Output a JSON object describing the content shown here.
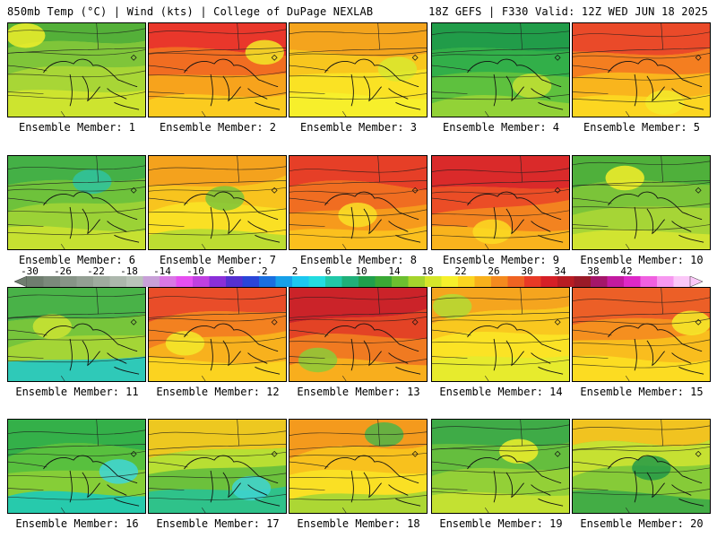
{
  "header": {
    "title_left": "850mb Temp (°C) | Wind (kts) | College of DuPage NEXLAB",
    "title_right": "18Z GEFS | F330 Valid: 12Z WED JUN 18 2025"
  },
  "panels": [
    {
      "label": "Ensemble Member: 1",
      "palette": [
        "#4fae3a",
        "#7cc43a",
        "#a8d636",
        "#cfe52f",
        "#f0ef2a"
      ]
    },
    {
      "label": "Ensemble Member: 2",
      "palette": [
        "#e8322c",
        "#f06a22",
        "#f7a31c",
        "#fbcd20",
        "#f2e727"
      ]
    },
    {
      "label": "Ensemble Member: 3",
      "palette": [
        "#f3a01d",
        "#f8c41f",
        "#fae224",
        "#f7ef2c",
        "#d9e72f"
      ]
    },
    {
      "label": "Ensemble Member: 4",
      "palette": [
        "#1e9a4a",
        "#2fae4a",
        "#5ec13e",
        "#95d337",
        "#c4e133"
      ]
    },
    {
      "label": "Ensemble Member: 5",
      "palette": [
        "#e9452a",
        "#f37b21",
        "#f9b51d",
        "#fcd822",
        "#f3ea2a"
      ]
    },
    {
      "label": "Ensemble Member: 6",
      "palette": [
        "#3fae48",
        "#6cc13c",
        "#9bd236",
        "#c8e231",
        "#2fc3a0"
      ]
    },
    {
      "label": "Ensemble Member: 7",
      "palette": [
        "#f39e1d",
        "#f8c21f",
        "#fae024",
        "#b9dc33",
        "#7cc43a"
      ]
    },
    {
      "label": "Ensemble Member: 8",
      "palette": [
        "#e53a28",
        "#ef6a22",
        "#f69a1c",
        "#fbc21f",
        "#f9e126"
      ]
    },
    {
      "label": "Ensemble Member: 9",
      "palette": [
        "#d8252b",
        "#ea4a27",
        "#f38320",
        "#f9b51d",
        "#fcdb22"
      ]
    },
    {
      "label": "Ensemble Member: 10",
      "palette": [
        "#4aae3c",
        "#78c33a",
        "#a6d536",
        "#d3e531",
        "#f4ee2a"
      ]
    },
    {
      "label": "Ensemble Member: 11",
      "palette": [
        "#45b04a",
        "#75c43c",
        "#a4d536",
        "#29c8c0",
        "#cbe332"
      ]
    },
    {
      "label": "Ensemble Member: 12",
      "palette": [
        "#e8482a",
        "#f27e21",
        "#f8b11d",
        "#fbd521",
        "#f3ea2a"
      ]
    },
    {
      "label": "Ensemble Member: 13",
      "palette": [
        "#c81f2a",
        "#e24026",
        "#f07a21",
        "#f8b11d",
        "#8ccb38"
      ]
    },
    {
      "label": "Ensemble Member: 14",
      "palette": [
        "#f4a11d",
        "#f9c61f",
        "#fbe325",
        "#e6eb2d",
        "#b3da34"
      ]
    },
    {
      "label": "Ensemble Member: 15",
      "palette": [
        "#eb5a28",
        "#f48c20",
        "#f9bd1e",
        "#fcdd23",
        "#f4ec2a"
      ]
    },
    {
      "label": "Ensemble Member: 16",
      "palette": [
        "#2fae4a",
        "#55bf3e",
        "#86ce37",
        "#22c9b2",
        "#3fd6d8"
      ]
    },
    {
      "label": "Ensemble Member: 17",
      "palette": [
        "#f4c81f",
        "#bde033",
        "#6cc13c",
        "#2cc28e",
        "#3ed4d2"
      ]
    },
    {
      "label": "Ensemble Member: 18",
      "palette": [
        "#f3961d",
        "#f8bf1e",
        "#fae024",
        "#a8d636",
        "#4fb448"
      ]
    },
    {
      "label": "Ensemble Member: 19",
      "palette": [
        "#3aa948",
        "#62bd3e",
        "#93d037",
        "#c5e232",
        "#f0ee2a"
      ]
    },
    {
      "label": "Ensemble Member: 20",
      "palette": [
        "#f7c21f",
        "#c9e232",
        "#86cb38",
        "#3fab46",
        "#239a48"
      ]
    }
  ],
  "colorbar": {
    "ticks": [
      "-30",
      "-26",
      "-22",
      "-18",
      "-14",
      "-10",
      "-6",
      "-2",
      "2",
      "6",
      "10",
      "14",
      "18",
      "22",
      "26",
      "30",
      "34",
      "38",
      "42"
    ],
    "colors": [
      "#6f7d6f",
      "#7b897b",
      "#879487",
      "#939f93",
      "#9fab9f",
      "#acb7ac",
      "#b9c3b9",
      "#c8a0d8",
      "#d977e4",
      "#e64ff0",
      "#c040e0",
      "#8a2fd8",
      "#5530d0",
      "#2a45d8",
      "#1a6fe0",
      "#17a0e8",
      "#1cc8f0",
      "#22dce0",
      "#21c8a8",
      "#1fb079",
      "#20a04c",
      "#3aa935",
      "#6cbf30",
      "#a5d42c",
      "#d5e62a",
      "#f6f02b",
      "#fbd520",
      "#f8b01b",
      "#f48a1e",
      "#ef6322",
      "#e83a26",
      "#d52027",
      "#b81c23",
      "#9a1a28",
      "#a4166a",
      "#c21aa0",
      "#de28c8",
      "#f060e0",
      "#f798f0",
      "#fbc8f8"
    ]
  }
}
